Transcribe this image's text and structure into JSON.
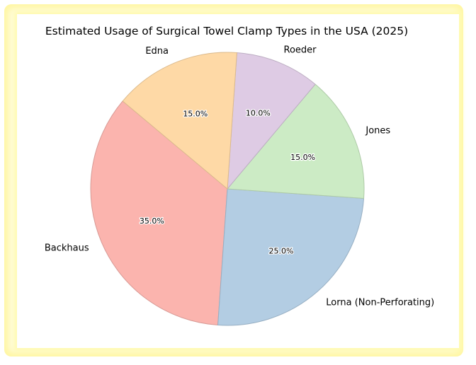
{
  "chart_data": {
    "type": "pie",
    "title": "Estimated Usage of Surgical Towel Clamp Types in the USA (2025)",
    "categories": [
      "Backhaus",
      "Lorna (Non-Perforating)",
      "Jones",
      "Roeder",
      "Edna"
    ],
    "values": [
      35.0,
      25.0,
      15.0,
      10.0,
      15.0
    ],
    "value_labels": [
      "35.0%",
      "25.0%",
      "15.0%",
      "10.0%",
      "15.0%"
    ],
    "colors": [
      "#fbb4ae",
      "#b3cde3",
      "#ccebc5",
      "#decbe4",
      "#fed9a6"
    ],
    "edge_colors": [
      "#d79a95",
      "#97afc3",
      "#aecaa7",
      "#bdaec3",
      "#dcbb8e"
    ],
    "start_angle_deg": 140,
    "direction": "counterclockwise",
    "legend": "none"
  }
}
